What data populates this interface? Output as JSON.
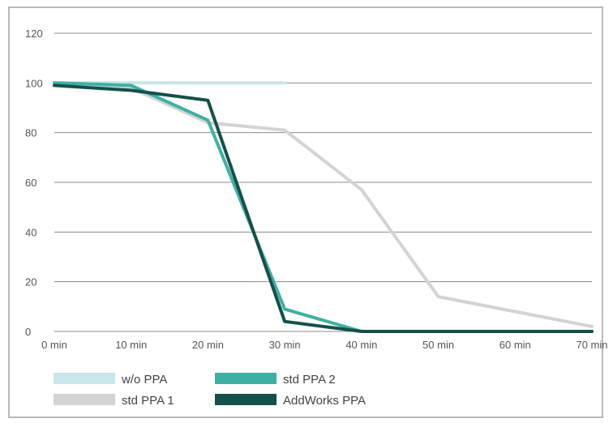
{
  "chart_data": {
    "type": "line",
    "title": "",
    "xlabel": "",
    "ylabel": "",
    "x": [
      "0 min",
      "10 min",
      "20 min",
      "30 min",
      "40 min",
      "50 min",
      "60 min",
      "70 min"
    ],
    "y_ticks": [
      "0",
      "20",
      "40",
      "60",
      "80",
      "100",
      "120"
    ],
    "ylim": [
      0,
      120
    ],
    "grid": true,
    "legend_position": "bottom-left",
    "series": [
      {
        "name": "w/o PPA",
        "color": "#c9e6ea",
        "x": [
          0,
          10,
          20,
          30
        ],
        "y": [
          100,
          100,
          100,
          100
        ]
      },
      {
        "name": "std PPA 1",
        "color": "#d3d3d1",
        "x": [
          0,
          10,
          20,
          30,
          40,
          50,
          60,
          70
        ],
        "y": [
          100,
          98,
          84,
          81,
          57,
          14,
          8,
          2
        ]
      },
      {
        "name": "std PPA 2",
        "color": "#3fb0a4",
        "x": [
          0,
          10,
          20,
          30,
          40,
          50,
          60,
          70
        ],
        "y": [
          100,
          99,
          85,
          9,
          0,
          0,
          0,
          0
        ]
      },
      {
        "name": "AddWorks PPA",
        "color": "#15504a",
        "x": [
          0,
          10,
          20,
          30,
          40,
          50,
          60,
          70
        ],
        "y": [
          99,
          97,
          93,
          4,
          0,
          0,
          0,
          0
        ]
      }
    ]
  }
}
